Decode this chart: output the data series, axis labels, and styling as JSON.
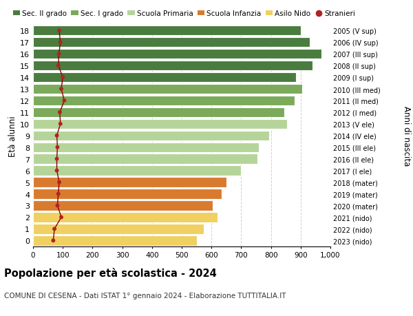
{
  "ages": [
    18,
    17,
    16,
    15,
    14,
    13,
    12,
    11,
    10,
    9,
    8,
    7,
    6,
    5,
    4,
    3,
    2,
    1,
    0
  ],
  "bar_values": [
    900,
    930,
    970,
    940,
    885,
    905,
    880,
    845,
    855,
    795,
    760,
    755,
    700,
    650,
    635,
    605,
    620,
    575,
    550
  ],
  "stranieri_values": [
    88,
    92,
    87,
    85,
    100,
    95,
    105,
    90,
    92,
    80,
    82,
    80,
    80,
    88,
    85,
    82,
    95,
    72,
    68
  ],
  "right_labels": [
    "2005 (V sup)",
    "2006 (IV sup)",
    "2007 (III sup)",
    "2008 (II sup)",
    "2009 (I sup)",
    "2010 (III med)",
    "2011 (II med)",
    "2012 (I med)",
    "2013 (V ele)",
    "2014 (IV ele)",
    "2015 (III ele)",
    "2016 (II ele)",
    "2017 (I ele)",
    "2018 (mater)",
    "2019 (mater)",
    "2020 (mater)",
    "2021 (nido)",
    "2022 (nido)",
    "2023 (nido)"
  ],
  "bar_colors": [
    "#4a7c3f",
    "#4a7c3f",
    "#4a7c3f",
    "#4a7c3f",
    "#4a7c3f",
    "#7aaa5a",
    "#7aaa5a",
    "#7aaa5a",
    "#b5d49a",
    "#b5d49a",
    "#b5d49a",
    "#b5d49a",
    "#b5d49a",
    "#d97b2e",
    "#d97b2e",
    "#d97b2e",
    "#f0d060",
    "#f0d060",
    "#f0d060"
  ],
  "stranieri_color": "#b22222",
  "line_color": "#8b0000",
  "grid_color": "#d0d0d0",
  "bg_color": "#ffffff",
  "title": "Popolazione per età scolastica - 2024",
  "subtitle": "COMUNE DI CESENA - Dati ISTAT 1° gennaio 2024 - Elaborazione TUTTITALIA.IT",
  "ylabel_left": "Età alunni",
  "ylabel_right": "Anni di nascita",
  "xticks": [
    0,
    100,
    200,
    300,
    400,
    500,
    600,
    700,
    800,
    900,
    1000
  ],
  "xtick_labels": [
    "0",
    "100",
    "200",
    "300",
    "400",
    "500",
    "600",
    "700",
    "800",
    "900",
    "1,000"
  ],
  "legend_entries": [
    "Sec. II grado",
    "Sec. I grado",
    "Scuola Primaria",
    "Scuola Infanzia",
    "Asilo Nido",
    "Stranieri"
  ],
  "legend_colors": [
    "#4a7c3f",
    "#7aaa5a",
    "#b5d49a",
    "#d97b2e",
    "#f0d060",
    "#b22222"
  ]
}
